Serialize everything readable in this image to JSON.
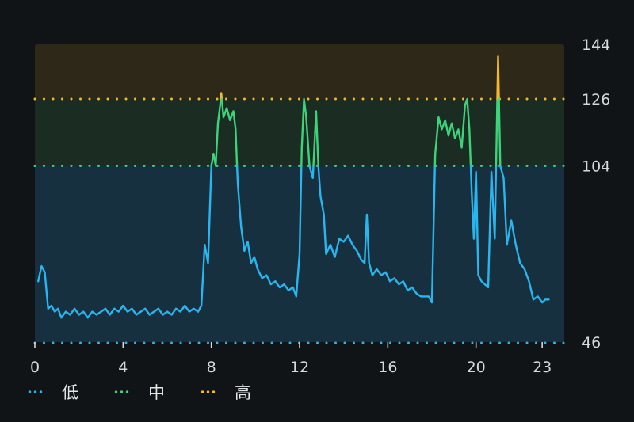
{
  "chart_data": {
    "type": "line",
    "title": "",
    "xlabel": "",
    "ylabel": "",
    "xlim": [
      0,
      24
    ],
    "ylim": [
      46,
      144
    ],
    "x_ticks": [
      0,
      4,
      8,
      12,
      16,
      20,
      23
    ],
    "y_ticks": [
      46,
      104,
      126,
      144
    ],
    "zones": [
      {
        "name": "低",
        "from": 46,
        "to": 104,
        "color": "#17303f"
      },
      {
        "name": "中",
        "from": 104,
        "to": 126,
        "color": "#1b2c22"
      },
      {
        "name": "高",
        "from": 126,
        "to": 144,
        "color": "#2e2819"
      }
    ],
    "thresholds": [
      {
        "value": 104,
        "color": "#3ed37a"
      },
      {
        "value": 126,
        "color": "#f5b82a"
      }
    ],
    "legend": {
      "position": "bottom-left",
      "items": [
        {
          "label": "低",
          "color": "#29b6f0"
        },
        {
          "label": "中",
          "color": "#3ed37a"
        },
        {
          "label": "高",
          "color": "#f5b82a"
        }
      ]
    },
    "series": [
      {
        "values": [
          [
            0.15,
            66
          ],
          [
            0.3,
            71
          ],
          [
            0.45,
            69
          ],
          [
            0.6,
            57
          ],
          [
            0.75,
            58
          ],
          [
            0.9,
            56
          ],
          [
            1.05,
            57
          ],
          [
            1.2,
            54
          ],
          [
            1.4,
            56
          ],
          [
            1.6,
            55
          ],
          [
            1.8,
            57
          ],
          [
            2.0,
            55
          ],
          [
            2.2,
            56
          ],
          [
            2.4,
            54
          ],
          [
            2.6,
            56
          ],
          [
            2.8,
            55
          ],
          [
            3.0,
            56
          ],
          [
            3.2,
            57
          ],
          [
            3.4,
            55
          ],
          [
            3.6,
            57
          ],
          [
            3.8,
            56
          ],
          [
            4.0,
            58
          ],
          [
            4.2,
            56
          ],
          [
            4.4,
            57
          ],
          [
            4.6,
            55
          ],
          [
            4.8,
            56
          ],
          [
            5.0,
            57
          ],
          [
            5.2,
            55
          ],
          [
            5.4,
            56
          ],
          [
            5.6,
            57
          ],
          [
            5.8,
            55
          ],
          [
            6.0,
            56
          ],
          [
            6.2,
            55
          ],
          [
            6.4,
            57
          ],
          [
            6.6,
            56
          ],
          [
            6.8,
            58
          ],
          [
            7.0,
            56
          ],
          [
            7.2,
            57
          ],
          [
            7.4,
            56
          ],
          [
            7.55,
            58
          ],
          [
            7.7,
            78
          ],
          [
            7.85,
            72
          ],
          [
            8.0,
            104
          ],
          [
            8.1,
            108
          ],
          [
            8.2,
            104
          ],
          [
            8.3,
            118
          ],
          [
            8.4,
            124
          ],
          [
            8.45,
            128
          ],
          [
            8.55,
            120
          ],
          [
            8.7,
            123
          ],
          [
            8.85,
            119
          ],
          [
            9.0,
            122
          ],
          [
            9.1,
            116
          ],
          [
            9.2,
            98
          ],
          [
            9.35,
            84
          ],
          [
            9.5,
            76
          ],
          [
            9.65,
            79
          ],
          [
            9.8,
            72
          ],
          [
            9.95,
            74
          ],
          [
            10.1,
            70
          ],
          [
            10.3,
            67
          ],
          [
            10.5,
            68
          ],
          [
            10.7,
            65
          ],
          [
            10.9,
            66
          ],
          [
            11.1,
            64
          ],
          [
            11.3,
            65
          ],
          [
            11.5,
            63
          ],
          [
            11.7,
            64
          ],
          [
            11.85,
            61
          ],
          [
            12.0,
            75
          ],
          [
            12.1,
            110
          ],
          [
            12.2,
            126
          ],
          [
            12.3,
            120
          ],
          [
            12.45,
            104
          ],
          [
            12.6,
            100
          ],
          [
            12.75,
            122
          ],
          [
            12.85,
            104
          ],
          [
            12.95,
            94
          ],
          [
            13.1,
            88
          ],
          [
            13.2,
            75
          ],
          [
            13.4,
            78
          ],
          [
            13.6,
            74
          ],
          [
            13.8,
            80
          ],
          [
            14.0,
            79
          ],
          [
            14.2,
            81
          ],
          [
            14.4,
            78
          ],
          [
            14.6,
            76
          ],
          [
            14.8,
            73
          ],
          [
            14.95,
            72
          ],
          [
            15.05,
            88
          ],
          [
            15.15,
            72
          ],
          [
            15.3,
            68
          ],
          [
            15.5,
            70
          ],
          [
            15.7,
            68
          ],
          [
            15.9,
            69
          ],
          [
            16.1,
            66
          ],
          [
            16.3,
            67
          ],
          [
            16.5,
            65
          ],
          [
            16.7,
            66
          ],
          [
            16.9,
            63
          ],
          [
            17.1,
            64
          ],
          [
            17.3,
            62
          ],
          [
            17.5,
            61
          ],
          [
            17.7,
            61
          ],
          [
            17.85,
            61
          ],
          [
            18.0,
            59
          ],
          [
            18.15,
            108
          ],
          [
            18.3,
            120
          ],
          [
            18.45,
            116
          ],
          [
            18.6,
            119
          ],
          [
            18.75,
            114
          ],
          [
            18.9,
            118
          ],
          [
            19.05,
            113
          ],
          [
            19.2,
            116
          ],
          [
            19.35,
            110
          ],
          [
            19.5,
            124
          ],
          [
            19.6,
            126
          ],
          [
            19.7,
            116
          ],
          [
            19.8,
            96
          ],
          [
            19.9,
            80
          ],
          [
            20.0,
            102
          ],
          [
            20.1,
            68
          ],
          [
            20.25,
            66
          ],
          [
            20.4,
            65
          ],
          [
            20.55,
            64
          ],
          [
            20.7,
            102
          ],
          [
            20.85,
            80
          ],
          [
            21.0,
            140
          ],
          [
            21.1,
            104
          ],
          [
            21.25,
            100
          ],
          [
            21.4,
            78
          ],
          [
            21.6,
            86
          ],
          [
            21.8,
            78
          ],
          [
            22.0,
            72
          ],
          [
            22.2,
            70
          ],
          [
            22.4,
            66
          ],
          [
            22.6,
            60
          ],
          [
            22.8,
            61
          ],
          [
            23.0,
            59
          ],
          [
            23.15,
            60
          ],
          [
            23.3,
            60
          ]
        ]
      }
    ]
  }
}
